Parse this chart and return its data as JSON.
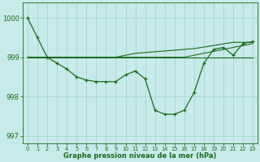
{
  "x": [
    0,
    1,
    2,
    3,
    4,
    5,
    6,
    7,
    8,
    9,
    10,
    11,
    12,
    13,
    14,
    15,
    16,
    17,
    18,
    19,
    20,
    21,
    22,
    23
  ],
  "series1": [
    1000.0,
    999.5,
    999.0,
    998.85,
    998.7,
    998.5,
    998.42,
    998.38,
    998.38,
    998.38,
    998.55,
    998.65,
    998.45,
    997.65,
    997.55,
    997.55,
    997.65,
    998.1,
    998.85,
    999.2,
    999.25,
    999.05,
    999.35,
    999.4
  ],
  "series_flat1": [
    999.0,
    999.0,
    999.0,
    999.0,
    999.0,
    999.0,
    999.0,
    999.0,
    999.0,
    999.0,
    999.0,
    999.0,
    999.0,
    999.0,
    999.0,
    999.0,
    999.0,
    999.0,
    999.0,
    999.0,
    999.0,
    999.0,
    999.0,
    999.0
  ],
  "series_flat2": [
    999.0,
    999.0,
    999.0,
    999.0,
    999.0,
    999.0,
    999.0,
    999.0,
    999.0,
    999.0,
    999.0,
    999.0,
    999.0,
    999.0,
    999.0,
    999.0,
    999.0,
    999.05,
    999.1,
    999.15,
    999.2,
    999.25,
    999.3,
    999.35
  ],
  "series_flat3": [
    999.0,
    999.0,
    999.0,
    999.0,
    999.0,
    999.0,
    999.0,
    999.0,
    999.0,
    999.0,
    999.05,
    999.1,
    999.12,
    999.14,
    999.16,
    999.18,
    999.2,
    999.22,
    999.26,
    999.3,
    999.34,
    999.38,
    999.38,
    999.38
  ],
  "line_color": "#1a6b1a",
  "bg_color": "#c8eaea",
  "grid_color": "#a0d0d0",
  "xlabel": "Graphe pression niveau de la mer (hPa)",
  "ylim": [
    996.8,
    1000.4
  ],
  "yticks": [
    997,
    998,
    999,
    1000
  ],
  "xticks": [
    0,
    1,
    2,
    3,
    4,
    5,
    6,
    7,
    8,
    9,
    10,
    11,
    12,
    13,
    14,
    15,
    16,
    17,
    18,
    19,
    20,
    21,
    22,
    23
  ]
}
